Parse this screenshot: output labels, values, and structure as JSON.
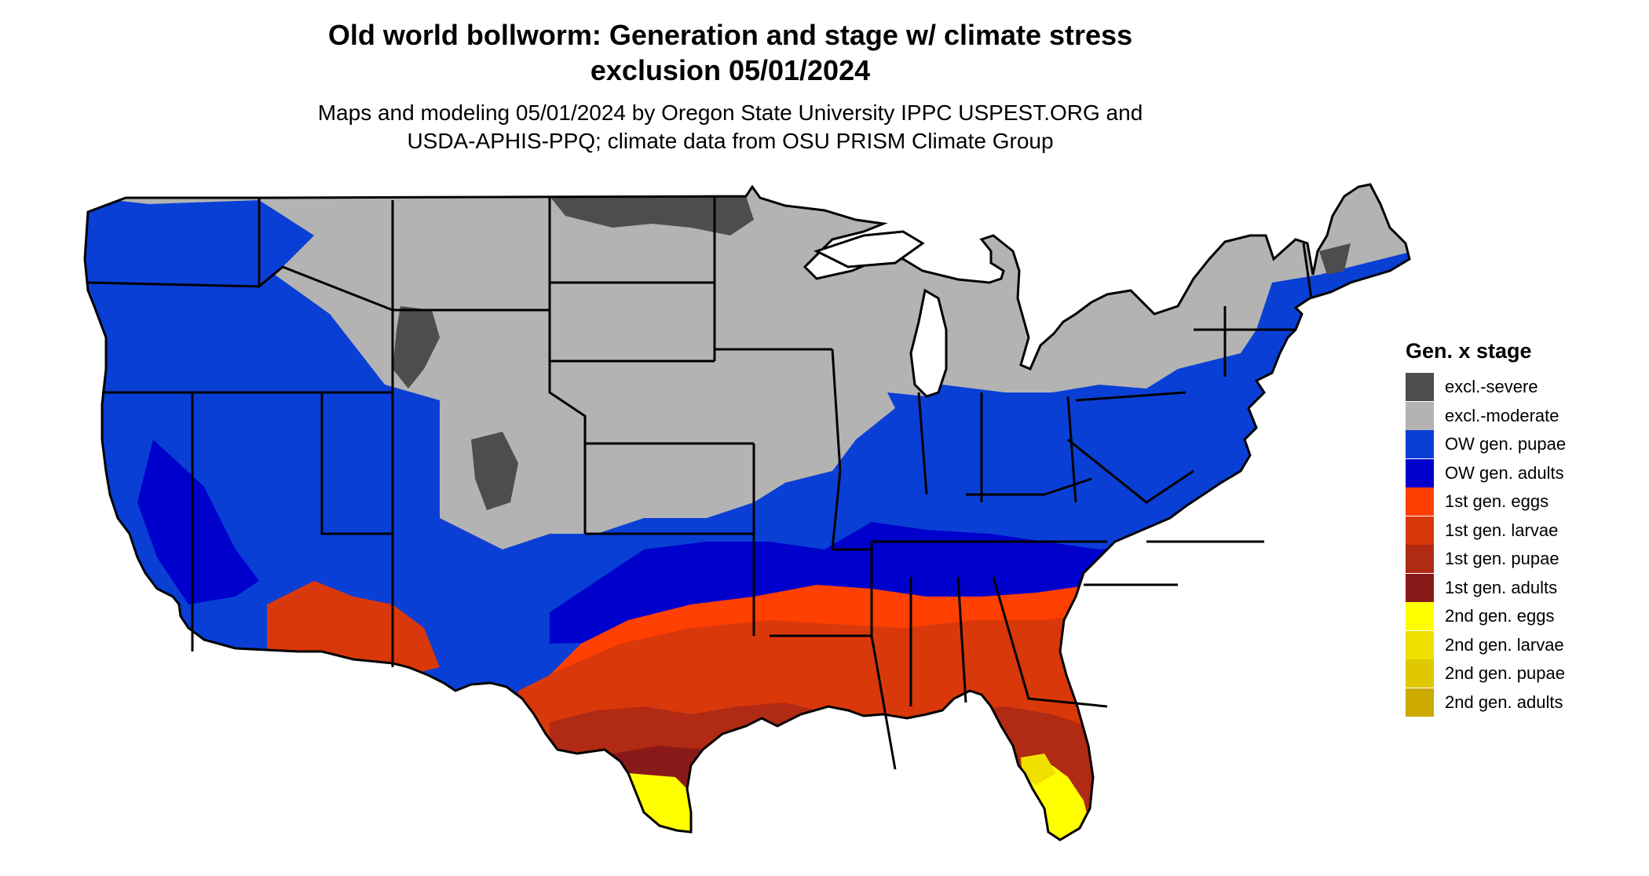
{
  "title_line1": "Old world bollworm: Generation and stage w/ climate stress",
  "title_line2": "exclusion 05/01/2024",
  "subtitle_line1": "Maps and modeling 05/01/2024 by Oregon State University IPPC USPEST.ORG and",
  "subtitle_line2": "USDA-APHIS-PPQ; climate data from OSU PRISM Climate Group",
  "legend": {
    "title": "Gen. x stage",
    "items": [
      {
        "label": "excl.-severe",
        "color": "#4d4d4d"
      },
      {
        "label": "excl.-moderate",
        "color": "#b3b3b3"
      },
      {
        "label": "OW gen. pupae",
        "color": "#0a3fd6"
      },
      {
        "label": "OW gen. adults",
        "color": "#0000cc"
      },
      {
        "label": "1st gen. eggs",
        "color": "#ff4000"
      },
      {
        "label": "1st gen. larvae",
        "color": "#d9380a"
      },
      {
        "label": "1st gen. pupae",
        "color": "#b02a14"
      },
      {
        "label": "1st gen. adults",
        "color": "#8a1a1a"
      },
      {
        "label": "2nd gen. eggs",
        "color": "#ffff00"
      },
      {
        "label": "2nd gen. larvae",
        "color": "#f0e000"
      },
      {
        "label": "2nd gen. pupae",
        "color": "#e0c800"
      },
      {
        "label": "2nd gen. adults",
        "color": "#ccaa00"
      }
    ]
  }
}
